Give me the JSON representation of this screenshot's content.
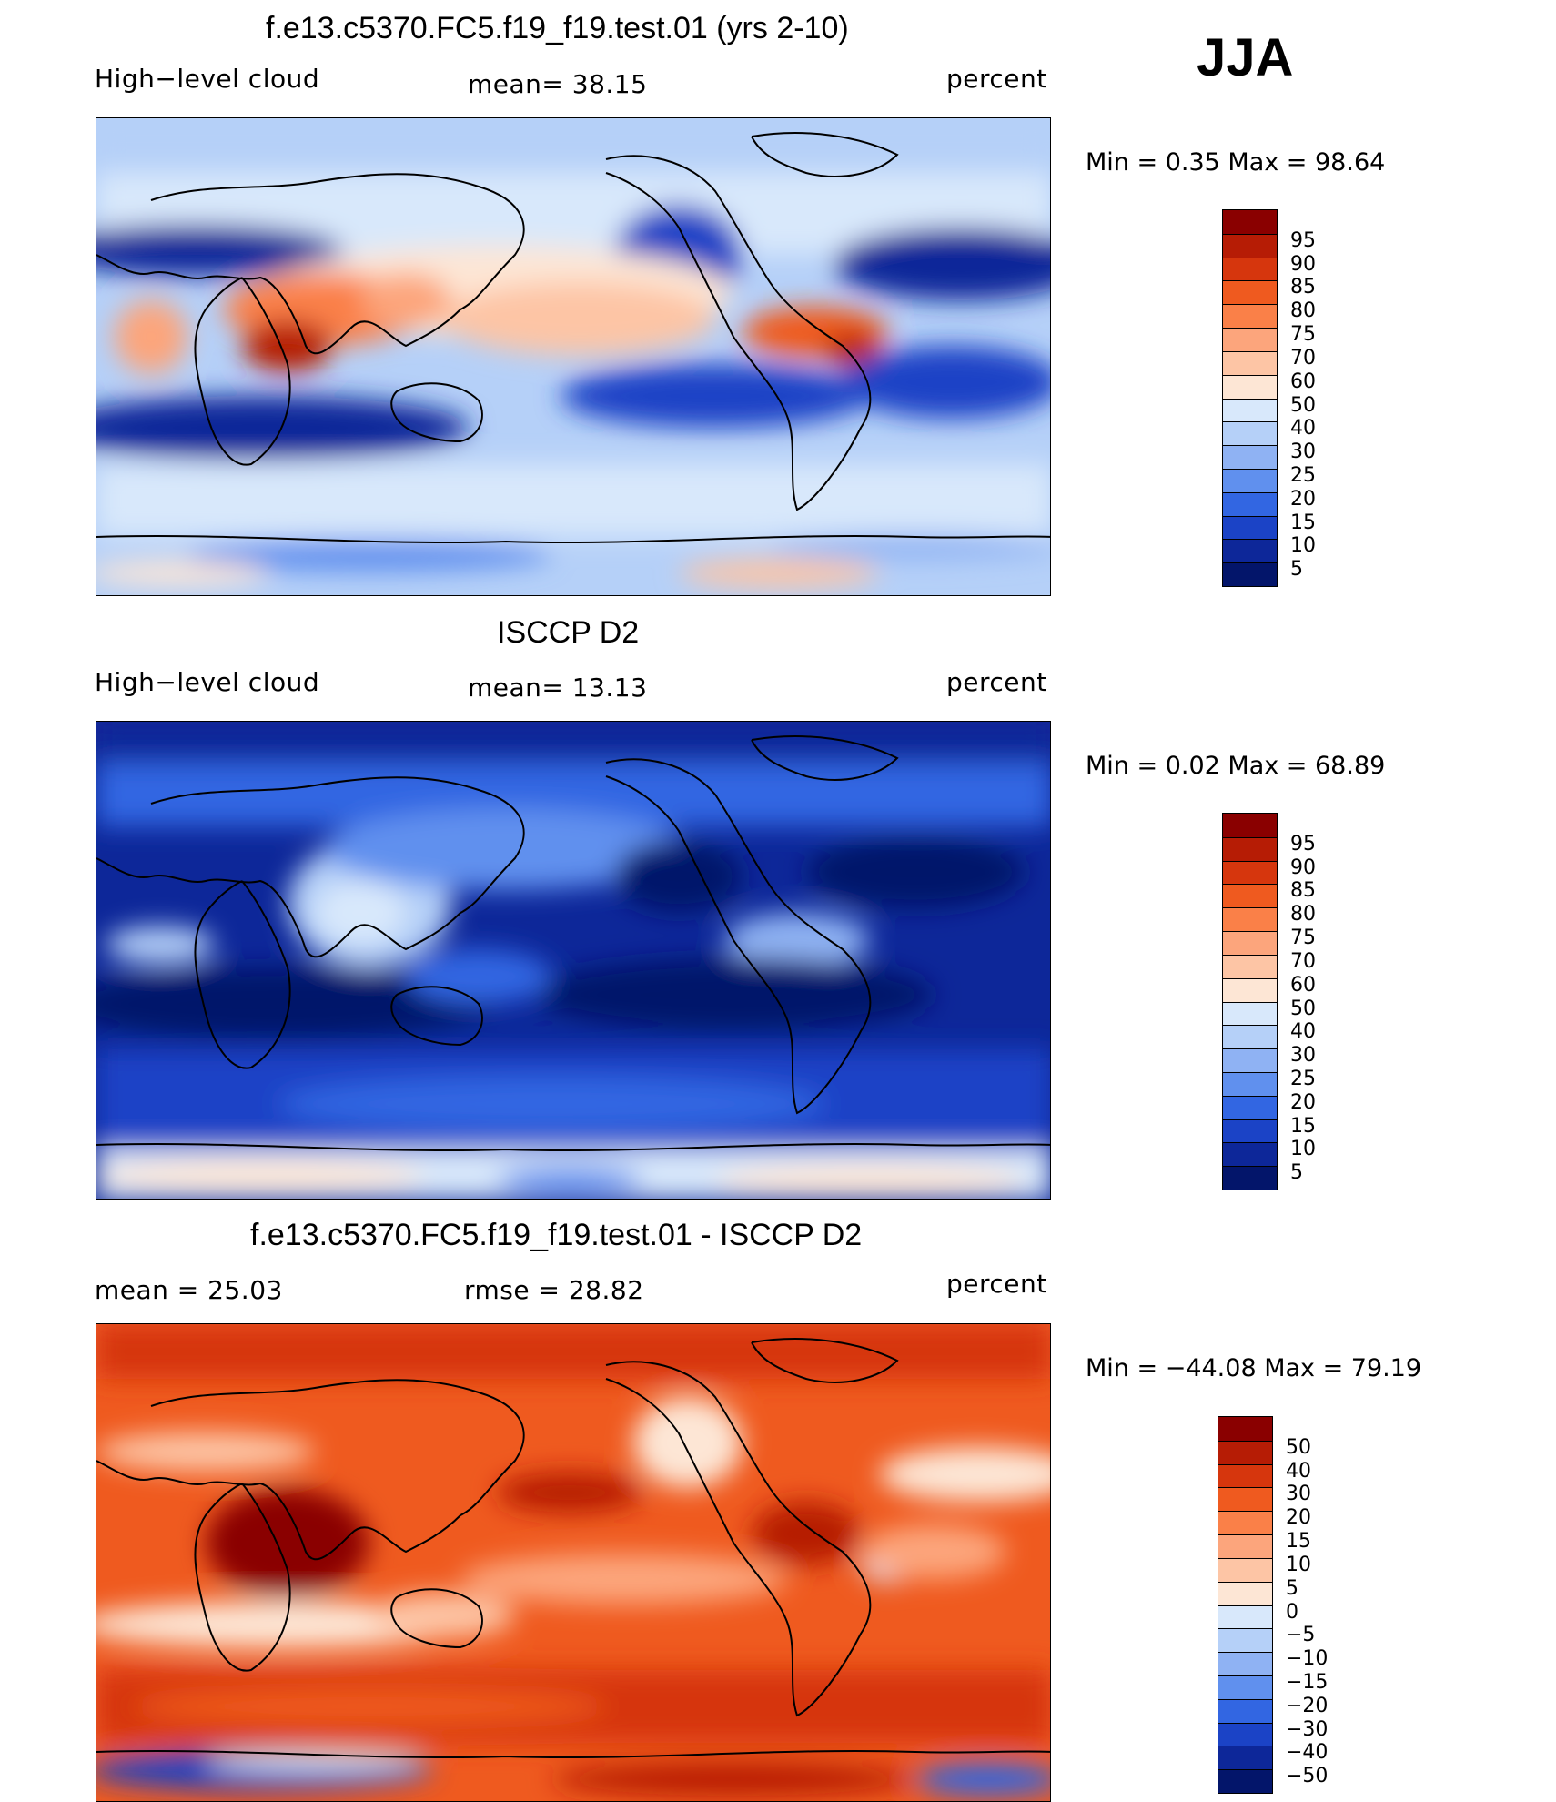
{
  "season": "JJA",
  "panels": [
    {
      "title": "f.e13.c5370.FC5.f19_f19.test.01 (yrs 2-10)",
      "left_label": "High−level cloud",
      "mean_label": "mean=   38.15",
      "units": "percent",
      "minmax": "Min =    0.35  Max =   98.64",
      "colorbar": [
        "95",
        "90",
        "85",
        "80",
        "75",
        "70",
        "60",
        "50",
        "40",
        "30",
        "25",
        "20",
        "15",
        "10",
        "5"
      ],
      "colors": [
        "#8a0000",
        "#b61c05",
        "#d6360d",
        "#ef5a1f",
        "#fa8048",
        "#fca57c",
        "#fdc5a5",
        "#fde6d5",
        "#d8e8fb",
        "#b5d0f8",
        "#8fb2f3",
        "#6090ee",
        "#3266e2",
        "#1b43c6",
        "#0d2799",
        "#03156a"
      ]
    },
    {
      "title": "ISCCP D2",
      "left_label": "High−level cloud",
      "mean_label": "mean=   13.13",
      "units": "percent",
      "minmax": "Min =    0.02  Max =   68.89",
      "colorbar": [
        "95",
        "90",
        "85",
        "80",
        "75",
        "70",
        "60",
        "50",
        "40",
        "30",
        "25",
        "20",
        "15",
        "10",
        "5"
      ],
      "colors": [
        "#8a0000",
        "#b61c05",
        "#d6360d",
        "#ef5a1f",
        "#fa8048",
        "#fca57c",
        "#fdc5a5",
        "#fde6d5",
        "#d8e8fb",
        "#b5d0f8",
        "#8fb2f3",
        "#6090ee",
        "#3266e2",
        "#1b43c6",
        "#0d2799",
        "#03156a"
      ]
    },
    {
      "title": "f.e13.c5370.FC5.f19_f19.test.01 - ISCCP D2",
      "left_label": "mean =   25.03",
      "mean_label": "rmse =   28.82",
      "units": "percent",
      "minmax": "Min = −44.08  Max =   79.19",
      "colorbar": [
        "50",
        "40",
        "30",
        "20",
        "15",
        "10",
        "5",
        "0",
        "−5",
        "−10",
        "−15",
        "−20",
        "−30",
        "−40",
        "−50"
      ],
      "colors": [
        "#8a0000",
        "#b61c05",
        "#d6360d",
        "#ef5a1f",
        "#fa8048",
        "#fca57c",
        "#fdc5a5",
        "#fde6d5",
        "#d8e8fb",
        "#b5d0f8",
        "#8fb2f3",
        "#6090ee",
        "#3266e2",
        "#1b43c6",
        "#0d2799",
        "#03156a"
      ]
    }
  ]
}
